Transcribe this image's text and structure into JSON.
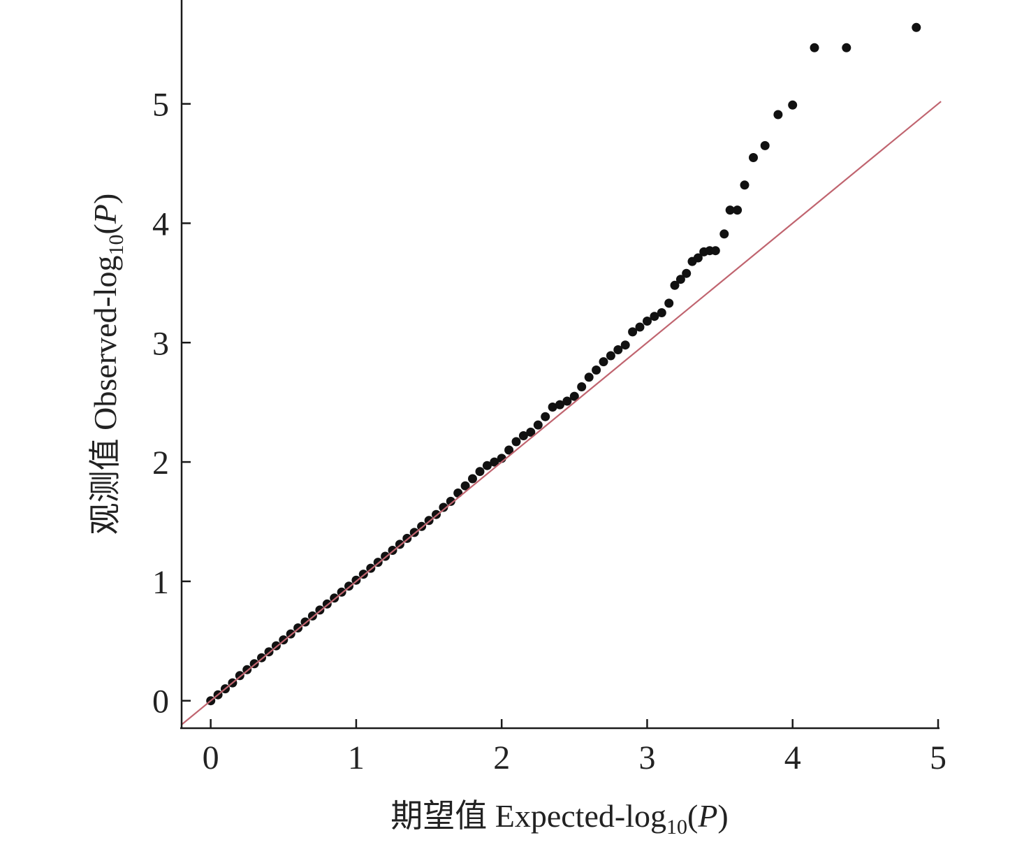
{
  "chart_data": {
    "type": "scatter",
    "xlabel": {
      "main": "期望值 Expected-log",
      "subscript": "10",
      "open": "(",
      "italic": "P",
      "close": ")"
    },
    "ylabel": {
      "main": "观测值 Observed-log",
      "subscript": "10",
      "open": "(",
      "italic": "P",
      "close": ")"
    },
    "xlim": [
      -0.2,
      5
    ],
    "ylim": [
      -0.23,
      5.87
    ],
    "xticks": [
      0,
      1,
      2,
      3,
      4,
      5
    ],
    "yticks": [
      0,
      1,
      2,
      3,
      4,
      5
    ],
    "grid": false,
    "legend": "none",
    "point_color": "#111111",
    "axis_color": "#1a1a1a",
    "reference_line": {
      "slope": 1,
      "intercept": 0,
      "color": "#c0646f"
    },
    "series": [
      {
        "points": [
          [
            0.0,
            0.0
          ],
          [
            0.05,
            0.05
          ],
          [
            0.1,
            0.1
          ],
          [
            0.15,
            0.15
          ],
          [
            0.2,
            0.21
          ],
          [
            0.25,
            0.26
          ],
          [
            0.3,
            0.31
          ],
          [
            0.35,
            0.36
          ],
          [
            0.4,
            0.41
          ],
          [
            0.45,
            0.46
          ],
          [
            0.5,
            0.51
          ],
          [
            0.55,
            0.56
          ],
          [
            0.6,
            0.61
          ],
          [
            0.65,
            0.66
          ],
          [
            0.7,
            0.71
          ],
          [
            0.75,
            0.76
          ],
          [
            0.8,
            0.81
          ],
          [
            0.85,
            0.86
          ],
          [
            0.9,
            0.91
          ],
          [
            0.95,
            0.96
          ],
          [
            1.0,
            1.01
          ],
          [
            1.05,
            1.06
          ],
          [
            1.1,
            1.11
          ],
          [
            1.15,
            1.16
          ],
          [
            1.2,
            1.21
          ],
          [
            1.25,
            1.26
          ],
          [
            1.3,
            1.31
          ],
          [
            1.35,
            1.36
          ],
          [
            1.4,
            1.41
          ],
          [
            1.45,
            1.46
          ],
          [
            1.5,
            1.51
          ],
          [
            1.55,
            1.56
          ],
          [
            1.6,
            1.62
          ],
          [
            1.65,
            1.67
          ],
          [
            1.7,
            1.74
          ],
          [
            1.75,
            1.8
          ],
          [
            1.8,
            1.86
          ],
          [
            1.85,
            1.92
          ],
          [
            1.9,
            1.97
          ],
          [
            1.95,
            2.0
          ],
          [
            2.0,
            2.03
          ],
          [
            2.05,
            2.1
          ],
          [
            2.1,
            2.17
          ],
          [
            2.15,
            2.22
          ],
          [
            2.2,
            2.25
          ],
          [
            2.25,
            2.31
          ],
          [
            2.3,
            2.38
          ],
          [
            2.35,
            2.46
          ],
          [
            2.4,
            2.48
          ],
          [
            2.45,
            2.51
          ],
          [
            2.5,
            2.55
          ],
          [
            2.55,
            2.63
          ],
          [
            2.6,
            2.71
          ],
          [
            2.65,
            2.77
          ],
          [
            2.7,
            2.84
          ],
          [
            2.75,
            2.89
          ],
          [
            2.8,
            2.94
          ],
          [
            2.85,
            2.98
          ],
          [
            2.9,
            3.09
          ],
          [
            2.95,
            3.13
          ],
          [
            3.0,
            3.18
          ],
          [
            3.05,
            3.22
          ],
          [
            3.1,
            3.25
          ],
          [
            3.15,
            3.33
          ],
          [
            3.19,
            3.48
          ],
          [
            3.23,
            3.53
          ],
          [
            3.27,
            3.58
          ],
          [
            3.31,
            3.68
          ],
          [
            3.35,
            3.71
          ],
          [
            3.39,
            3.76
          ],
          [
            3.43,
            3.77
          ],
          [
            3.47,
            3.77
          ],
          [
            3.53,
            3.91
          ],
          [
            3.57,
            4.11
          ],
          [
            3.62,
            4.11
          ],
          [
            3.67,
            4.32
          ],
          [
            3.73,
            4.55
          ],
          [
            3.81,
            4.65
          ],
          [
            3.9,
            4.91
          ],
          [
            4.0,
            4.99
          ],
          [
            4.15,
            5.47
          ],
          [
            4.37,
            5.47
          ],
          [
            4.85,
            5.64
          ]
        ]
      }
    ]
  }
}
